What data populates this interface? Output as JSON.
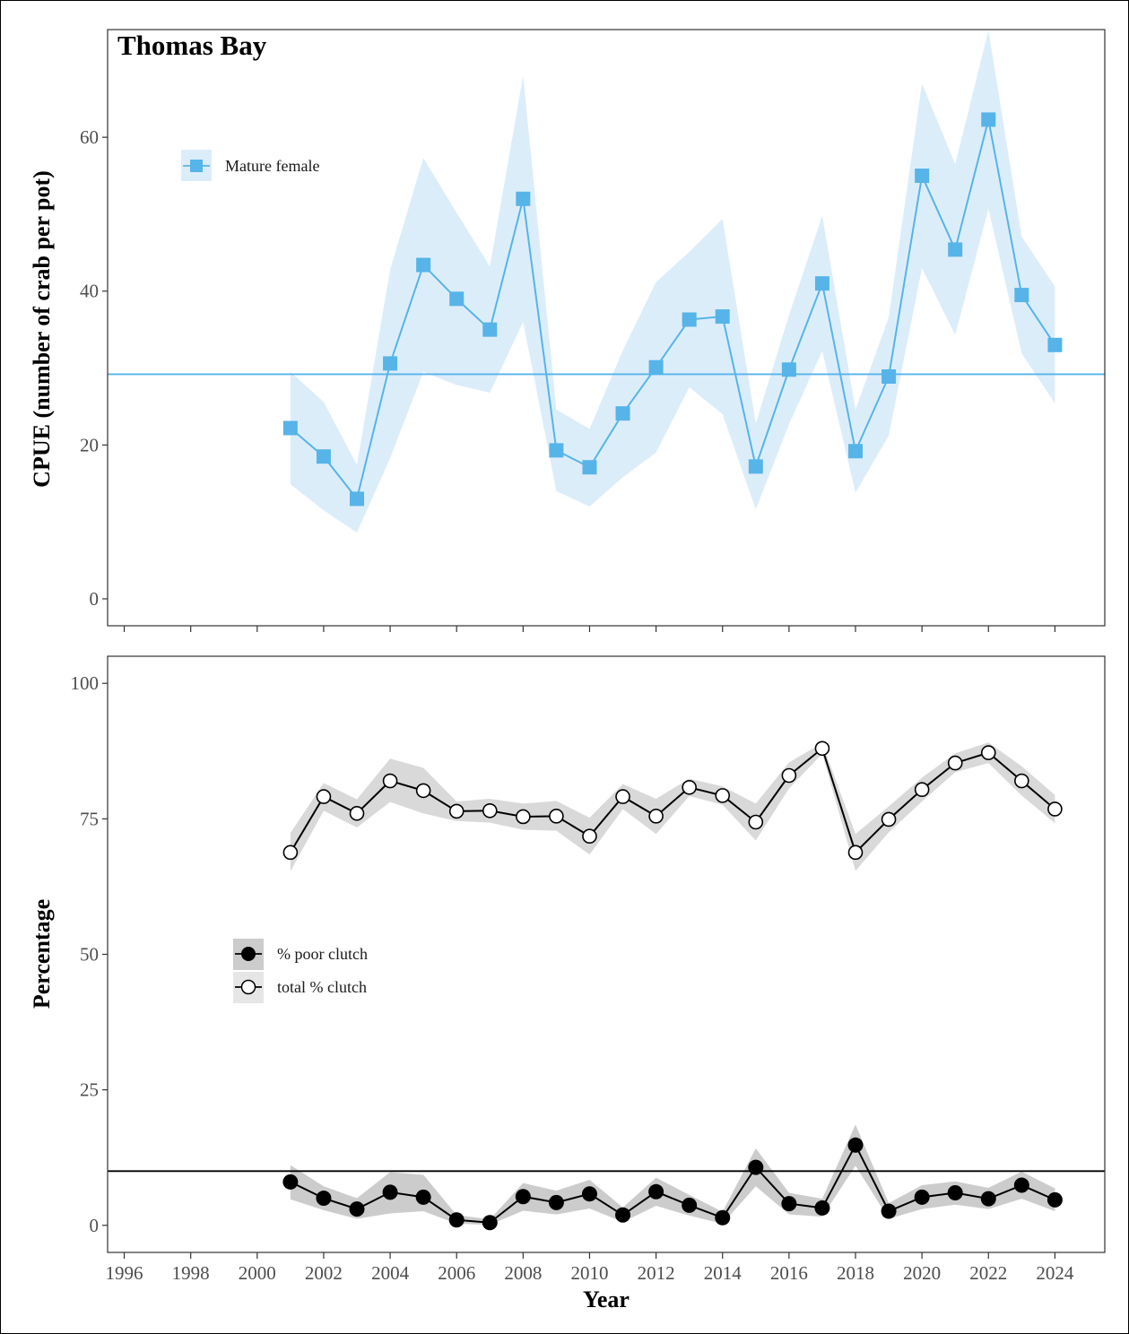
{
  "chart_data": [
    {
      "type": "line",
      "title": "Thomas Bay",
      "xlabel": "",
      "ylabel": "CPUE (number of crab per pot)",
      "xlim": [
        1995.5,
        2025.5
      ],
      "ylim": [
        -3.5,
        74
      ],
      "xticks": [
        1996,
        1998,
        2000,
        2002,
        2004,
        2006,
        2008,
        2010,
        2012,
        2014,
        2016,
        2018,
        2020,
        2022,
        2024
      ],
      "yticks": [
        0,
        20,
        40,
        60
      ],
      "grid": false,
      "legend_position": "top-left",
      "reference_line": 29.2,
      "colors": {
        "line": "#56b4e9",
        "band": "#dcedfa"
      },
      "series": [
        {
          "name": "Mature female",
          "x": [
            2001,
            2002,
            2003,
            2004,
            2005,
            2006,
            2007,
            2008,
            2009,
            2010,
            2011,
            2012,
            2013,
            2014,
            2015,
            2016,
            2017,
            2018,
            2019,
            2020,
            2021,
            2022,
            2023,
            2024
          ],
          "y": [
            22.2,
            18.5,
            13,
            30.6,
            43.4,
            39,
            35,
            52,
            19.3,
            17.1,
            24.1,
            30.1,
            36.3,
            36.7,
            17.2,
            29.8,
            41,
            19.2,
            28.9,
            55,
            45.4,
            62.3,
            39.5,
            33
          ],
          "lower": [
            14.9,
            11.5,
            8.6,
            18.3,
            29.5,
            27.8,
            26.8,
            36,
            14,
            12,
            15.8,
            19,
            27.5,
            24,
            11.6,
            22.7,
            32.2,
            13.8,
            21.2,
            43,
            34.3,
            50.7,
            31.9,
            25.4
          ],
          "upper": [
            29.5,
            25.6,
            17.4,
            42.8,
            57.3,
            50.2,
            43.2,
            68,
            24.6,
            22.1,
            32.3,
            41.2,
            45.1,
            49.4,
            22.8,
            36.9,
            49.8,
            24.6,
            36.6,
            67,
            56.5,
            73.9,
            47.1,
            40.6
          ],
          "marker": "square"
        }
      ]
    },
    {
      "type": "line",
      "title": "",
      "xlabel": "Year",
      "ylabel": "Percentage",
      "xlim": [
        1995.5,
        2025.5
      ],
      "ylim": [
        -5,
        105
      ],
      "xticks": [
        1996,
        1998,
        2000,
        2002,
        2004,
        2006,
        2008,
        2010,
        2012,
        2014,
        2016,
        2018,
        2020,
        2022,
        2024
      ],
      "yticks": [
        0,
        25,
        50,
        75,
        100
      ],
      "grid": false,
      "legend_position": "middle-left",
      "reference_line": 10,
      "colors": {
        "line": "#000000",
        "band": "#cccccc"
      },
      "series": [
        {
          "name": "% poor clutch",
          "x": [
            2001,
            2002,
            2003,
            2004,
            2005,
            2006,
            2007,
            2008,
            2009,
            2010,
            2011,
            2012,
            2013,
            2014,
            2015,
            2016,
            2017,
            2018,
            2019,
            2020,
            2021,
            2022,
            2023,
            2024
          ],
          "y": [
            8,
            5,
            3,
            6.1,
            5.2,
            1,
            0.5,
            5.3,
            4.2,
            5.8,
            1.9,
            6.2,
            3.7,
            1.4,
            10.7,
            4,
            3.2,
            14.8,
            2.6,
            5.2,
            6,
            4.9,
            7.4,
            4.7
          ],
          "lower": [
            4.8,
            2.8,
            1.2,
            2.2,
            2.6,
            0.3,
            0.1,
            2.7,
            2,
            3.1,
            0.6,
            3.6,
            1.8,
            0.3,
            7.2,
            2,
            1.6,
            11,
            1.2,
            3,
            3.8,
            3,
            4.9,
            2.6
          ],
          "upper": [
            11.1,
            7.2,
            5,
            9.8,
            9.3,
            1.9,
            1.1,
            7.8,
            6.4,
            8.4,
            3.3,
            8.8,
            5.6,
            2.5,
            14.2,
            6,
            4.9,
            18.6,
            4.1,
            7.4,
            8.1,
            6.9,
            9.9,
            6.8
          ],
          "marker": "filled-circle"
        },
        {
          "name": "total % clutch",
          "x": [
            2001,
            2002,
            2003,
            2004,
            2005,
            2006,
            2007,
            2008,
            2009,
            2010,
            2011,
            2012,
            2013,
            2014,
            2015,
            2016,
            2017,
            2018,
            2019,
            2020,
            2021,
            2022,
            2023,
            2024
          ],
          "y": [
            68.8,
            79.1,
            76,
            82,
            80.2,
            76.4,
            76.5,
            75.4,
            75.5,
            71.8,
            79.1,
            75.5,
            80.8,
            79.3,
            74.4,
            83,
            88,
            68.8,
            74.9,
            80.4,
            85.3,
            87.2,
            82,
            76.8
          ],
          "lower": [
            65.3,
            76.5,
            73.4,
            78.1,
            76,
            74.6,
            74.3,
            73,
            72.8,
            68.4,
            76.8,
            72.2,
            79.2,
            77.6,
            71,
            80.6,
            87,
            65.4,
            72.5,
            78.2,
            83.6,
            85.3,
            79.3,
            74.2
          ],
          "upper": [
            72.4,
            81.6,
            78.6,
            86.1,
            84.4,
            78.2,
            78.7,
            77.8,
            78.3,
            75.2,
            81.4,
            78.7,
            82.4,
            81,
            77.8,
            85.4,
            89,
            72.2,
            77.3,
            82.6,
            87.1,
            89.1,
            84.7,
            79.4
          ],
          "marker": "open-circle"
        }
      ]
    }
  ]
}
